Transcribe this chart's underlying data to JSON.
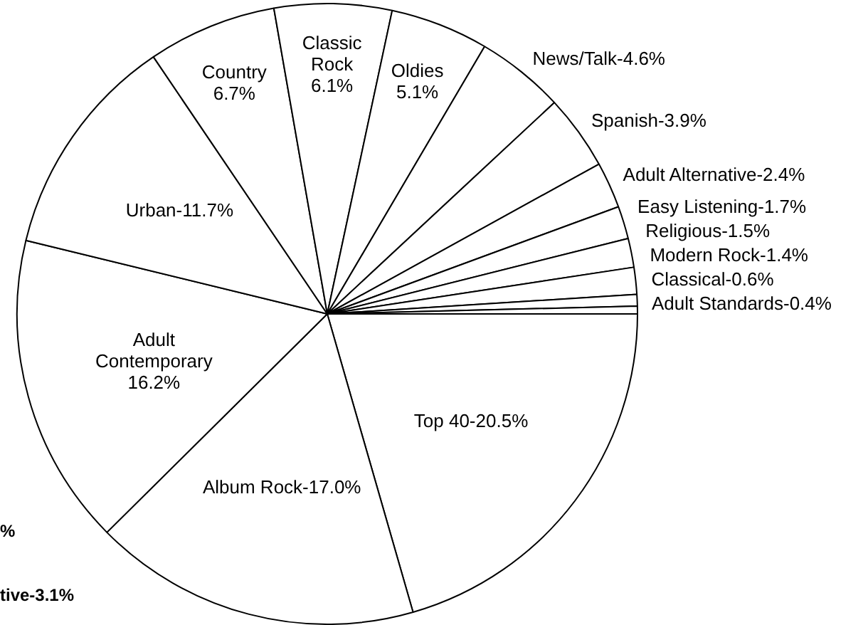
{
  "chart_data": {
    "type": "pie",
    "categories": [
      "Top 40",
      "Album Rock",
      "Adult Contemporary",
      "Urban",
      "Country",
      "Classic Rock",
      "Oldies",
      "News/Talk",
      "Spanish",
      "Adult Alternative",
      "Easy Listening",
      "Religious",
      "Modern Rock",
      "Classical",
      "Adult Standards"
    ],
    "values": [
      20.5,
      17.0,
      16.2,
      11.7,
      6.7,
      6.1,
      5.1,
      4.6,
      3.9,
      2.4,
      1.7,
      1.5,
      1.4,
      0.6,
      0.4
    ],
    "value_labels": [
      "20.5%",
      "17.0%",
      "16.2%",
      "11.7%",
      "6.7%",
      "6.1%",
      "5.1%",
      "4.6%",
      "3.9%",
      "2.4%",
      "1.7%",
      "1.5%",
      "1.4%",
      "0.6%",
      "0.4%"
    ],
    "colors": [
      "#ffffff",
      "#ffffff",
      "#ffffff",
      "#ffffff",
      "#ffffff",
      "#ffffff",
      "#ffffff",
      "#ffffff",
      "#ffffff",
      "#ffffff",
      "#ffffff",
      "#ffffff",
      "#ffffff",
      "#ffffff",
      "#ffffff"
    ],
    "legend": false,
    "annotations": [
      "%",
      "tive-3.1%"
    ]
  }
}
